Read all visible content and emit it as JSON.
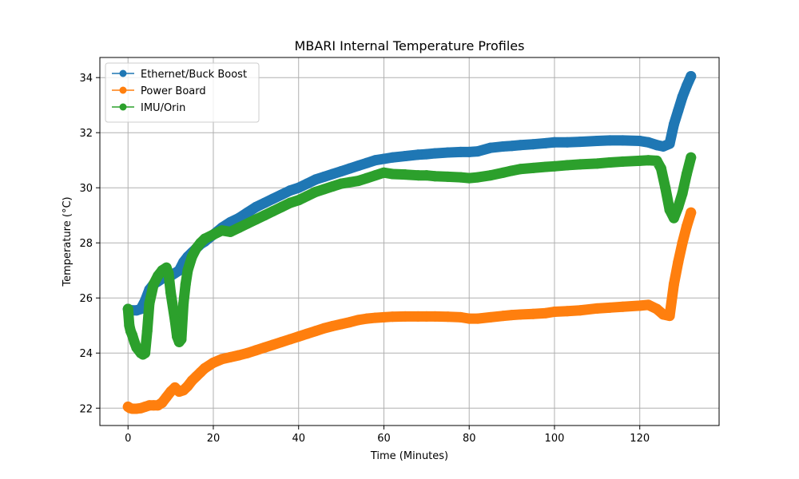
{
  "chart_data": {
    "type": "line",
    "title": "MBARI Internal Temperature Profiles",
    "xlabel": "Time (Minutes)",
    "ylabel": "Temperature (°C)",
    "xlim": [
      -6.6,
      138.6
    ],
    "ylim": [
      21.37,
      34.73
    ],
    "xticks": [
      0,
      20,
      40,
      60,
      80,
      100,
      120
    ],
    "yticks": [
      22,
      24,
      26,
      28,
      30,
      32,
      34
    ],
    "grid": true,
    "legend_position": "upper-left",
    "series": [
      {
        "name": "Ethernet/Buck Boost",
        "color": "#1f77b4",
        "x": [
          0,
          0.5,
          1,
          2,
          3,
          4,
          5,
          6,
          7,
          8,
          9,
          10,
          11,
          12,
          13,
          14,
          15,
          16,
          17,
          18,
          20,
          22,
          24,
          26,
          28,
          30,
          32,
          34,
          36,
          38,
          40,
          42,
          44,
          46,
          48,
          50,
          52,
          54,
          56,
          58,
          60,
          62,
          65,
          68,
          70,
          72,
          75,
          78,
          80,
          82,
          85,
          88,
          90,
          92,
          95,
          98,
          100,
          103,
          106,
          110,
          113,
          116,
          120,
          122,
          124,
          125.5,
          127,
          128,
          129,
          130,
          131,
          132
        ],
        "y": [
          25.6,
          25.55,
          25.55,
          25.55,
          25.6,
          25.9,
          26.3,
          26.5,
          26.6,
          26.7,
          26.75,
          26.8,
          26.9,
          27.0,
          27.3,
          27.5,
          27.65,
          27.8,
          27.95,
          28.05,
          28.3,
          28.55,
          28.75,
          28.9,
          29.1,
          29.3,
          29.45,
          29.6,
          29.75,
          29.9,
          30.0,
          30.15,
          30.3,
          30.4,
          30.5,
          30.6,
          30.7,
          30.8,
          30.9,
          31.0,
          31.05,
          31.1,
          31.15,
          31.2,
          31.22,
          31.25,
          31.28,
          31.3,
          31.3,
          31.32,
          31.45,
          31.5,
          31.52,
          31.55,
          31.58,
          31.62,
          31.65,
          31.65,
          31.67,
          31.7,
          31.72,
          31.72,
          31.7,
          31.65,
          31.55,
          31.5,
          31.6,
          32.3,
          32.8,
          33.3,
          33.7,
          34.05
        ]
      },
      {
        "name": "Power Board",
        "color": "#ff7f0e",
        "x": [
          0,
          0.5,
          1,
          2,
          3,
          4,
          5,
          6,
          7,
          8,
          9,
          10,
          11,
          12,
          13,
          14,
          15,
          16,
          17,
          18,
          20,
          22,
          24,
          26,
          28,
          30,
          32,
          34,
          36,
          38,
          40,
          42,
          44,
          46,
          48,
          50,
          52,
          54,
          56,
          58,
          60,
          62,
          65,
          68,
          70,
          72,
          75,
          78,
          80,
          82,
          85,
          88,
          90,
          92,
          95,
          98,
          100,
          103,
          106,
          110,
          113,
          116,
          120,
          122,
          124,
          125.5,
          127,
          128,
          129,
          130,
          131,
          132
        ],
        "y": [
          22.05,
          22.0,
          21.98,
          21.98,
          22.0,
          22.05,
          22.1,
          22.1,
          22.1,
          22.2,
          22.4,
          22.6,
          22.75,
          22.6,
          22.65,
          22.8,
          23.0,
          23.15,
          23.3,
          23.45,
          23.65,
          23.78,
          23.85,
          23.92,
          24.0,
          24.1,
          24.2,
          24.3,
          24.4,
          24.5,
          24.6,
          24.7,
          24.8,
          24.9,
          24.98,
          25.05,
          25.12,
          25.2,
          25.25,
          25.28,
          25.3,
          25.32,
          25.33,
          25.33,
          25.33,
          25.33,
          25.32,
          25.3,
          25.25,
          25.25,
          25.3,
          25.35,
          25.38,
          25.4,
          25.42,
          25.45,
          25.5,
          25.52,
          25.55,
          25.62,
          25.65,
          25.68,
          25.72,
          25.75,
          25.6,
          25.4,
          25.35,
          26.5,
          27.3,
          28.0,
          28.6,
          29.1
        ]
      },
      {
        "name": "IMU/Orin",
        "color": "#2ca02c",
        "x": [
          0,
          0.3,
          0.6,
          1,
          1.5,
          2,
          2.5,
          3,
          3.5,
          4,
          4.5,
          5,
          6,
          7,
          8,
          9,
          9.5,
          10,
          11,
          11.5,
          12,
          12.5,
          13,
          13.5,
          14,
          15,
          16,
          17,
          18,
          20,
          22,
          24,
          26,
          28,
          30,
          32,
          34,
          36,
          38,
          40,
          42,
          44,
          46,
          48,
          50,
          52,
          54,
          56,
          58,
          60,
          62,
          65,
          68,
          70,
          72,
          75,
          78,
          80,
          82,
          85,
          88,
          90,
          92,
          95,
          98,
          100,
          103,
          106,
          110,
          113,
          116,
          120,
          122,
          124,
          125,
          126,
          127,
          128,
          129,
          130,
          131,
          132
        ],
        "y": [
          25.6,
          25.0,
          24.8,
          24.65,
          24.4,
          24.2,
          24.1,
          24.0,
          23.95,
          24.0,
          24.8,
          25.8,
          26.5,
          26.8,
          27.0,
          27.1,
          26.9,
          26.2,
          25.2,
          24.6,
          24.4,
          24.5,
          25.8,
          26.5,
          27.0,
          27.5,
          27.8,
          28.0,
          28.15,
          28.3,
          28.45,
          28.4,
          28.55,
          28.7,
          28.85,
          29.0,
          29.15,
          29.3,
          29.45,
          29.55,
          29.7,
          29.85,
          29.95,
          30.05,
          30.15,
          30.2,
          30.25,
          30.35,
          30.45,
          30.55,
          30.5,
          30.48,
          30.45,
          30.45,
          30.42,
          30.4,
          30.38,
          30.35,
          30.38,
          30.45,
          30.55,
          30.62,
          30.68,
          30.72,
          30.76,
          30.78,
          30.82,
          30.85,
          30.88,
          30.92,
          30.95,
          30.98,
          31.0,
          30.98,
          30.7,
          30.0,
          29.2,
          28.9,
          29.3,
          29.8,
          30.5,
          31.1
        ]
      }
    ]
  }
}
